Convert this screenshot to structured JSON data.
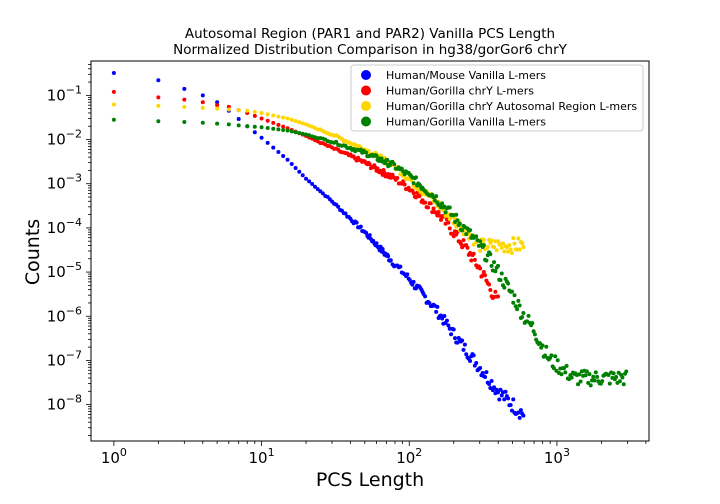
{
  "chart_data": {
    "type": "scatter",
    "title_line1": "Autosomal Region (PAR1 and PAR2) Vanilla PCS Length",
    "title_line2": "Normalized Distribution Comparison in hg38/gorGor6 chrY",
    "xlabel": "PCS Length",
    "ylabel": "Counts",
    "x_scale": "log",
    "y_scale": "log",
    "xlim": [
      0.7,
      4200
    ],
    "ylim": [
      1.5e-09,
      0.6
    ],
    "x_ticks": [
      {
        "base": "10",
        "exp": "0",
        "value": 1
      },
      {
        "base": "10",
        "exp": "1",
        "value": 10
      },
      {
        "base": "10",
        "exp": "2",
        "value": 100
      },
      {
        "base": "10",
        "exp": "3",
        "value": 1000
      }
    ],
    "y_ticks": [
      {
        "base": "10",
        "exp": "−8",
        "value": 1e-08
      },
      {
        "base": "10",
        "exp": "−7",
        "value": 1e-07
      },
      {
        "base": "10",
        "exp": "−6",
        "value": 1e-06
      },
      {
        "base": "10",
        "exp": "−5",
        "value": 1e-05
      },
      {
        "base": "10",
        "exp": "−4",
        "value": 0.0001
      },
      {
        "base": "10",
        "exp": "−3",
        "value": 0.001
      },
      {
        "base": "10",
        "exp": "−2",
        "value": 0.01
      },
      {
        "base": "10",
        "exp": "−1",
        "value": 0.1
      }
    ],
    "grid": false,
    "legend_position": "top-right",
    "series": [
      {
        "name": "Human/Mouse Vanilla L-mers",
        "color": "#0000ff",
        "x": [
          1,
          2,
          3,
          4,
          5,
          6,
          8,
          10,
          15,
          20,
          30,
          50,
          80,
          100,
          150,
          200,
          250,
          300,
          400,
          500,
          600
        ],
        "y": [
          0.32,
          0.22,
          0.14,
          0.1,
          0.07,
          0.045,
          0.02,
          0.011,
          0.0035,
          0.0013,
          0.0004,
          8e-05,
          1.5e-05,
          7e-06,
          1.5e-06,
          4e-07,
          1.5e-07,
          7e-08,
          2e-08,
          1e-08,
          6e-09
        ]
      },
      {
        "name": "Human/Gorilla chrY L-mers",
        "color": "#ff0000",
        "x": [
          1,
          2,
          3,
          4,
          5,
          6,
          8,
          10,
          15,
          20,
          30,
          50,
          80,
          100,
          150,
          200,
          250,
          300,
          400
        ],
        "y": [
          0.12,
          0.09,
          0.08,
          0.07,
          0.06,
          0.055,
          0.04,
          0.03,
          0.018,
          0.012,
          0.0065,
          0.003,
          0.0013,
          0.0008,
          0.00025,
          8e-05,
          3e-05,
          1.2e-05,
          2e-06
        ]
      },
      {
        "name": "Human/Gorilla chrY Autosomal Region L-mers",
        "color": "#ffd700",
        "x": [
          1,
          2,
          3,
          4,
          5,
          6,
          8,
          10,
          15,
          20,
          30,
          50,
          80,
          100,
          130,
          150,
          200,
          250,
          300,
          400,
          600
        ],
        "y": [
          0.062,
          0.058,
          0.055,
          0.052,
          0.05,
          0.048,
          0.045,
          0.04,
          0.03,
          0.022,
          0.013,
          0.006,
          0.0025,
          0.0013,
          0.0006,
          0.0004,
          0.00015,
          8e-05,
          4e-05,
          4e-05,
          4e-05
        ]
      },
      {
        "name": "Human/Gorilla Vanilla L-mers",
        "color": "#008000",
        "x": [
          1,
          2,
          3,
          4,
          5,
          6,
          8,
          10,
          15,
          20,
          30,
          50,
          80,
          100,
          150,
          200,
          300,
          400,
          500,
          600,
          700,
          800,
          900,
          1000,
          1300,
          1600,
          2000,
          3000
        ],
        "y": [
          0.028,
          0.026,
          0.025,
          0.024,
          0.023,
          0.022,
          0.02,
          0.019,
          0.016,
          0.013,
          0.009,
          0.005,
          0.0025,
          0.0015,
          0.0005,
          0.00018,
          4e-05,
          1e-05,
          3e-06,
          1e-06,
          5e-07,
          2e-07,
          1e-07,
          8e-08,
          4e-08,
          4e-08,
          4e-08,
          4e-08
        ]
      }
    ]
  }
}
